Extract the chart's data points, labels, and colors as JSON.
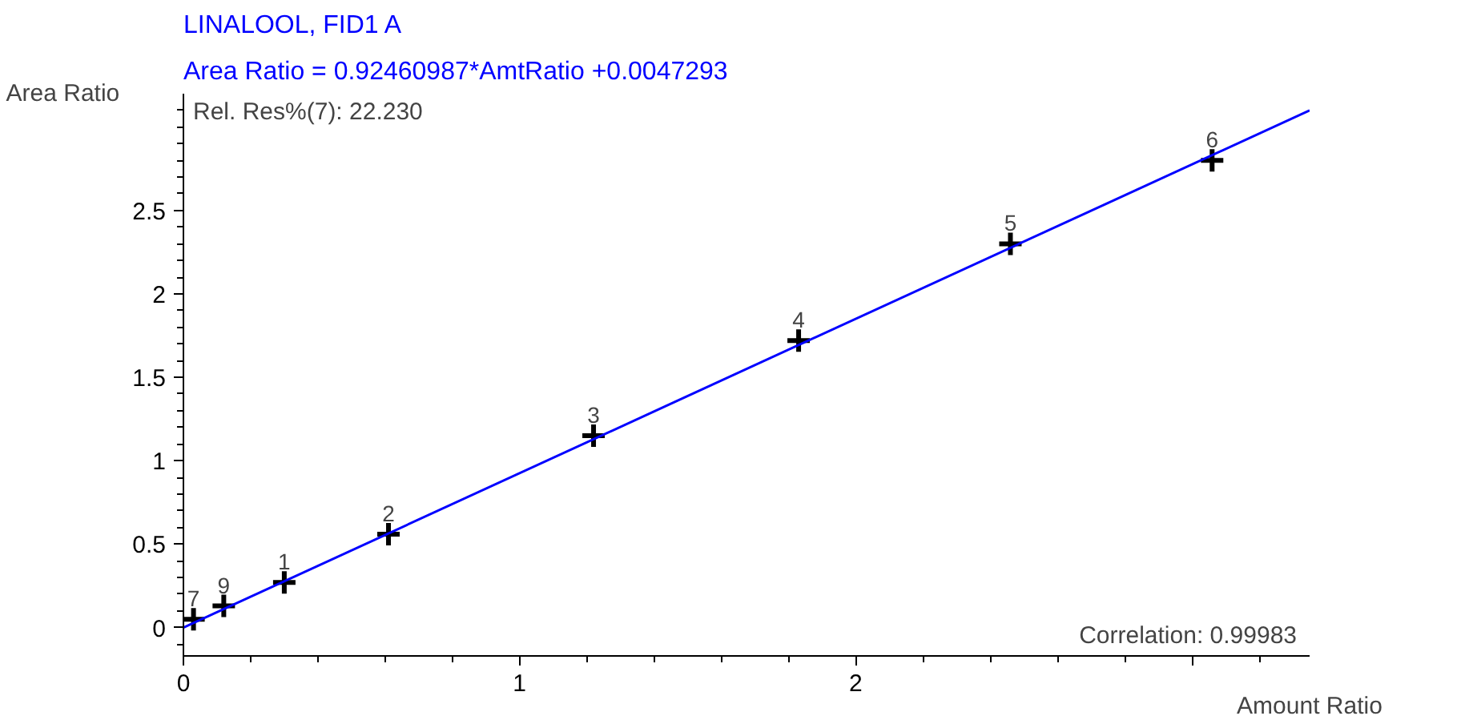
{
  "chart_data": {
    "type": "scatter",
    "title": "LINALOOL, FID1 A",
    "subtitle": "Area Ratio = 0.92460987*AmtRatio +0.0047293",
    "xlabel": "Amount Ratio",
    "ylabel": "Area Ratio",
    "x": [
      0.03,
      0.12,
      0.3,
      0.61,
      1.22,
      1.83,
      2.46,
      3.06
    ],
    "series": [
      {
        "color": "#000000",
        "values": [
          0.05,
          0.13,
          0.27,
          0.56,
          1.15,
          1.72,
          2.3,
          2.8
        ]
      },
      {
        "type": "line",
        "color": "#0000ff",
        "x": [
          0,
          3.35
        ],
        "values": [
          0,
          3.1
        ],
        "marker": "none"
      }
    ],
    "marker": "cross",
    "line_style": "solid",
    "grid": false,
    "xlim": [
      0,
      3.35
    ],
    "ylim": [
      -0.17,
      3.2
    ],
    "xticks": [
      0,
      1,
      2,
      {
        "value": 3,
        "label": null
      }
    ],
    "yticks": [
      0,
      0.5,
      1,
      1.5,
      2,
      2.5
    ],
    "annotations": [
      "Rel. Res%(7): 22.230",
      "Correlation: 0.99983",
      {
        "text": "7",
        "x": 0.03,
        "y": 0.05
      },
      {
        "text": "9",
        "x": 0.12,
        "y": 0.13
      },
      {
        "text": "1",
        "x": 0.3,
        "y": 0.27
      },
      {
        "text": "2",
        "x": 0.61,
        "y": 0.56
      },
      {
        "text": "3",
        "x": 1.22,
        "y": 1.15
      },
      {
        "text": "4",
        "x": 1.83,
        "y": 1.72
      },
      {
        "text": "5",
        "x": 2.46,
        "y": 2.3
      },
      {
        "text": "6",
        "x": 3.06,
        "y": 2.8
      }
    ]
  }
}
